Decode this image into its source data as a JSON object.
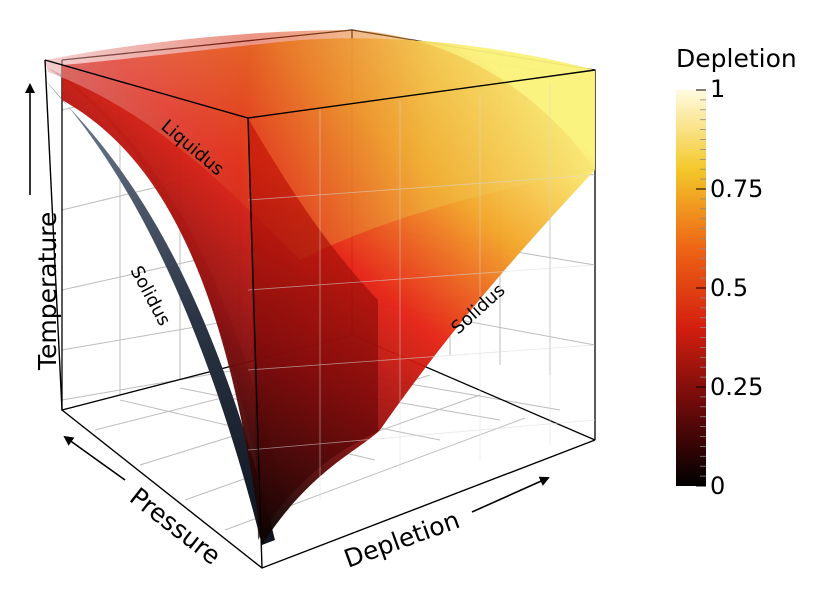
{
  "axes": {
    "temperature_label": "Temperature",
    "pressure_label": "Pressure",
    "depletion_label": "Depletion"
  },
  "surface_labels": {
    "liquidus": "Liquidus",
    "solidus_left": "Solidus",
    "solidus_right": "Solidus"
  },
  "colorbar": {
    "title": "Depletion",
    "ticks": [
      "1",
      "0.75",
      "0.5",
      "0.25",
      "0"
    ],
    "colormap": [
      "#000000",
      "#6b0a0a",
      "#d41f10",
      "#ee6414",
      "#f3c82a",
      "#fffbe0"
    ]
  }
}
